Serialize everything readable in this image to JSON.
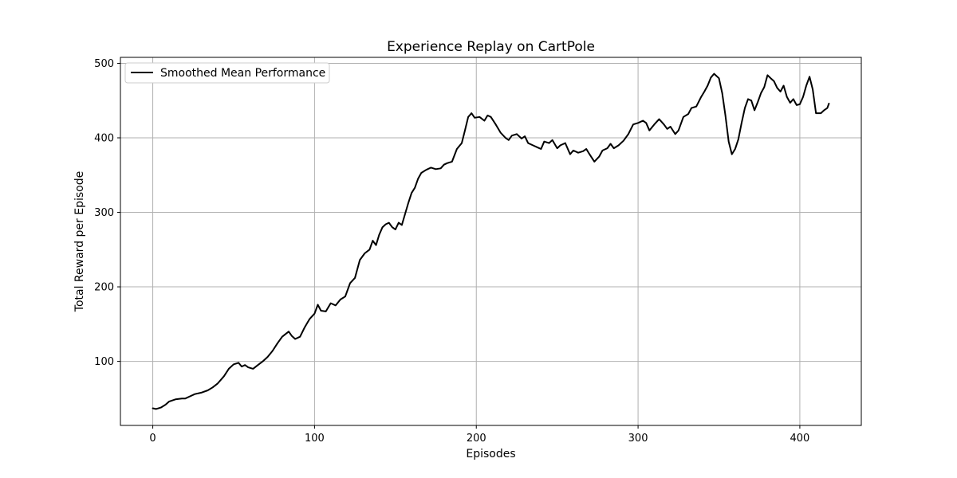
{
  "chart_data": {
    "type": "line",
    "title": "Experience Replay on CartPole",
    "xlabel": "Episodes",
    "ylabel": "Total Reward per Episode",
    "xlim": [
      -20,
      438
    ],
    "ylim": [
      14,
      508
    ],
    "xticks": [
      0,
      100,
      200,
      300,
      400
    ],
    "yticks": [
      100,
      200,
      300,
      400,
      500
    ],
    "grid": true,
    "legend_position": "top-left",
    "series": [
      {
        "name": "Smoothed Mean Performance",
        "color": "#000000",
        "points": [
          [
            0,
            37
          ],
          [
            2,
            36
          ],
          [
            5,
            38
          ],
          [
            8,
            42
          ],
          [
            10,
            46
          ],
          [
            14,
            49
          ],
          [
            18,
            50
          ],
          [
            20,
            50
          ],
          [
            23,
            53
          ],
          [
            26,
            56
          ],
          [
            30,
            58
          ],
          [
            34,
            61
          ],
          [
            37,
            65
          ],
          [
            40,
            70
          ],
          [
            44,
            80
          ],
          [
            47,
            90
          ],
          [
            50,
            96
          ],
          [
            53,
            98
          ],
          [
            55,
            93
          ],
          [
            57,
            95
          ],
          [
            59,
            92
          ],
          [
            62,
            90
          ],
          [
            65,
            95
          ],
          [
            68,
            100
          ],
          [
            71,
            106
          ],
          [
            74,
            114
          ],
          [
            77,
            124
          ],
          [
            80,
            133
          ],
          [
            84,
            140
          ],
          [
            86,
            134
          ],
          [
            88,
            130
          ],
          [
            91,
            133
          ],
          [
            94,
            146
          ],
          [
            97,
            157
          ],
          [
            100,
            164
          ],
          [
            102,
            176
          ],
          [
            104,
            168
          ],
          [
            107,
            167
          ],
          [
            110,
            178
          ],
          [
            113,
            175
          ],
          [
            116,
            183
          ],
          [
            119,
            187
          ],
          [
            122,
            205
          ],
          [
            125,
            212
          ],
          [
            128,
            236
          ],
          [
            131,
            245
          ],
          [
            134,
            250
          ],
          [
            136,
            262
          ],
          [
            138,
            256
          ],
          [
            140,
            270
          ],
          [
            142,
            280
          ],
          [
            144,
            284
          ],
          [
            146,
            286
          ],
          [
            148,
            280
          ],
          [
            150,
            277
          ],
          [
            152,
            286
          ],
          [
            154,
            283
          ],
          [
            156,
            298
          ],
          [
            158,
            313
          ],
          [
            160,
            326
          ],
          [
            162,
            333
          ],
          [
            164,
            345
          ],
          [
            166,
            353
          ],
          [
            169,
            357
          ],
          [
            172,
            360
          ],
          [
            175,
            358
          ],
          [
            178,
            359
          ],
          [
            180,
            364
          ],
          [
            182,
            366
          ],
          [
            185,
            368
          ],
          [
            188,
            385
          ],
          [
            191,
            393
          ],
          [
            193,
            410
          ],
          [
            195,
            428
          ],
          [
            197,
            433
          ],
          [
            199,
            427
          ],
          [
            202,
            428
          ],
          [
            205,
            423
          ],
          [
            207,
            430
          ],
          [
            209,
            428
          ],
          [
            212,
            418
          ],
          [
            215,
            407
          ],
          [
            218,
            400
          ],
          [
            220,
            397
          ],
          [
            222,
            403
          ],
          [
            225,
            405
          ],
          [
            228,
            399
          ],
          [
            230,
            402
          ],
          [
            232,
            393
          ],
          [
            235,
            390
          ],
          [
            238,
            387
          ],
          [
            240,
            385
          ],
          [
            242,
            395
          ],
          [
            245,
            393
          ],
          [
            247,
            397
          ],
          [
            250,
            386
          ],
          [
            252,
            390
          ],
          [
            255,
            393
          ],
          [
            258,
            378
          ],
          [
            260,
            383
          ],
          [
            263,
            380
          ],
          [
            266,
            382
          ],
          [
            268,
            385
          ],
          [
            270,
            378
          ],
          [
            273,
            368
          ],
          [
            276,
            375
          ],
          [
            278,
            383
          ],
          [
            281,
            386
          ],
          [
            283,
            392
          ],
          [
            285,
            386
          ],
          [
            288,
            390
          ],
          [
            291,
            396
          ],
          [
            294,
            405
          ],
          [
            297,
            418
          ],
          [
            300,
            420
          ],
          [
            303,
            423
          ],
          [
            305,
            420
          ],
          [
            307,
            410
          ],
          [
            310,
            418
          ],
          [
            313,
            425
          ],
          [
            316,
            418
          ],
          [
            318,
            412
          ],
          [
            320,
            415
          ],
          [
            323,
            405
          ],
          [
            325,
            410
          ],
          [
            328,
            428
          ],
          [
            331,
            432
          ],
          [
            333,
            440
          ],
          [
            336,
            442
          ],
          [
            339,
            455
          ],
          [
            341,
            462
          ],
          [
            343,
            470
          ],
          [
            345,
            481
          ],
          [
            347,
            486
          ],
          [
            350,
            480
          ],
          [
            352,
            460
          ],
          [
            354,
            430
          ],
          [
            356,
            395
          ],
          [
            358,
            378
          ],
          [
            360,
            385
          ],
          [
            362,
            398
          ],
          [
            364,
            420
          ],
          [
            366,
            440
          ],
          [
            368,
            452
          ],
          [
            370,
            450
          ],
          [
            372,
            437
          ],
          [
            374,
            448
          ],
          [
            376,
            460
          ],
          [
            378,
            468
          ],
          [
            380,
            484
          ],
          [
            382,
            480
          ],
          [
            384,
            476
          ],
          [
            386,
            467
          ],
          [
            388,
            462
          ],
          [
            390,
            470
          ],
          [
            392,
            455
          ],
          [
            394,
            447
          ],
          [
            396,
            452
          ],
          [
            398,
            444
          ],
          [
            400,
            445
          ],
          [
            402,
            455
          ],
          [
            404,
            470
          ],
          [
            406,
            482
          ],
          [
            408,
            465
          ],
          [
            410,
            433
          ],
          [
            413,
            433
          ],
          [
            415,
            437
          ],
          [
            417,
            440
          ],
          [
            418,
            446
          ]
        ]
      }
    ]
  }
}
